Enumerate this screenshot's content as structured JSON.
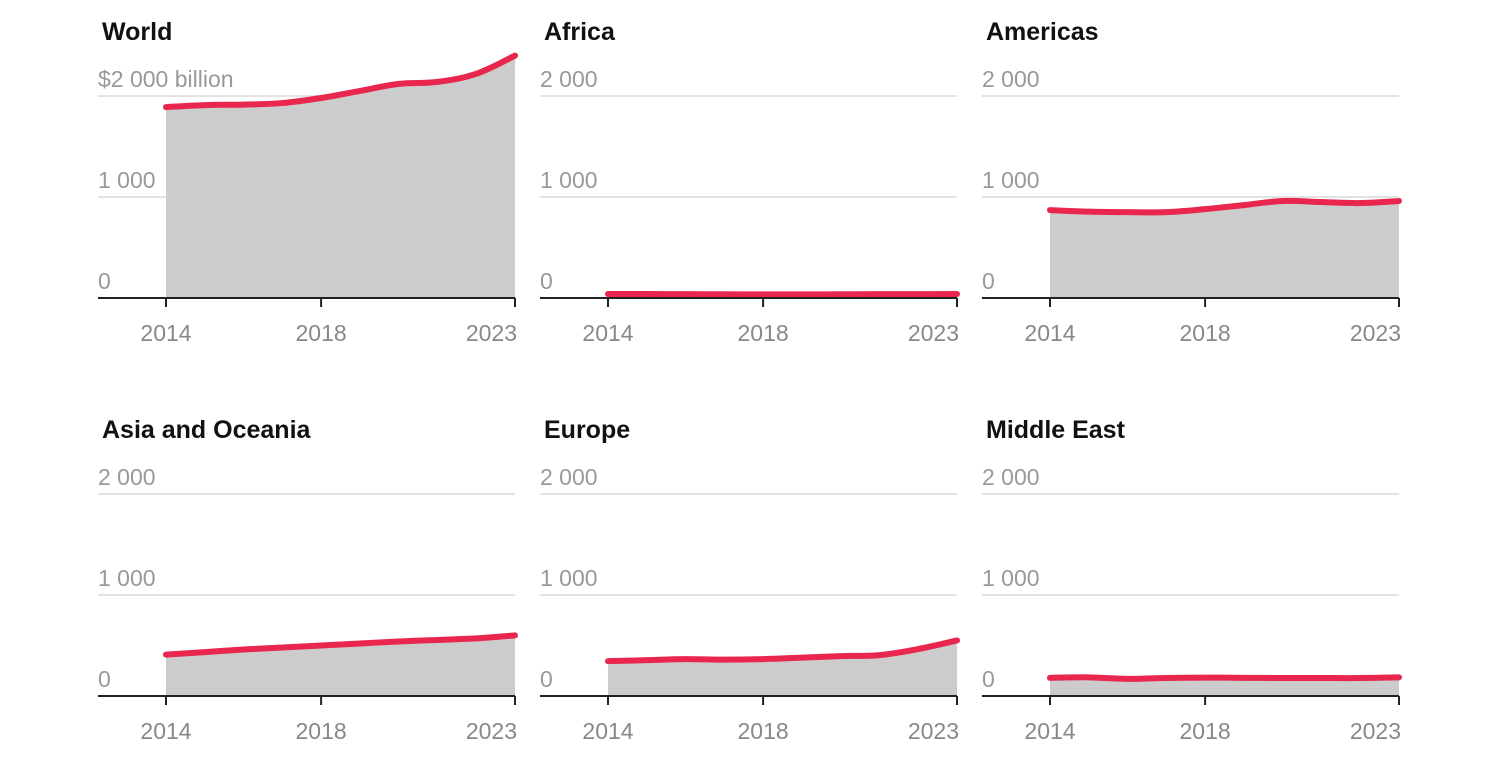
{
  "colors": {
    "line": "#e8264e",
    "area": "#cccccc",
    "grid": "#e3e3e3",
    "axis": "#222222",
    "tick_text": "#999999",
    "title_text": "#111111"
  },
  "chart_data": [
    {
      "type": "area",
      "title": "World",
      "x": [
        2014,
        2015,
        2016,
        2017,
        2018,
        2019,
        2020,
        2021,
        2022,
        2023
      ],
      "values": [
        1890,
        1910,
        1915,
        1930,
        1980,
        2050,
        2120,
        2140,
        2220,
        2400
      ],
      "ylim": [
        0,
        2000
      ],
      "yticks": [
        {
          "value": 0,
          "label": "0"
        },
        {
          "value": 1000,
          "label": "1 000"
        },
        {
          "value": 2000,
          "label": "$2 000 billion"
        }
      ],
      "xticks": [
        2014,
        2018,
        2023
      ],
      "grid": true
    },
    {
      "type": "area",
      "title": "Africa",
      "x": [
        2014,
        2015,
        2016,
        2017,
        2018,
        2019,
        2020,
        2021,
        2022,
        2023
      ],
      "values": [
        40,
        39,
        38,
        37,
        36,
        36,
        37,
        38,
        38,
        40
      ],
      "ylim": [
        0,
        2000
      ],
      "yticks": [
        {
          "value": 0,
          "label": "0"
        },
        {
          "value": 1000,
          "label": "1 000"
        },
        {
          "value": 2000,
          "label": "2 000"
        }
      ],
      "xticks": [
        2014,
        2018,
        2023
      ],
      "grid": true
    },
    {
      "type": "area",
      "title": "Americas",
      "x": [
        2014,
        2015,
        2016,
        2017,
        2018,
        2019,
        2020,
        2021,
        2022,
        2023
      ],
      "values": [
        870,
        855,
        850,
        850,
        880,
        920,
        960,
        950,
        940,
        960
      ],
      "ylim": [
        0,
        2000
      ],
      "yticks": [
        {
          "value": 0,
          "label": "0"
        },
        {
          "value": 1000,
          "label": "1 000"
        },
        {
          "value": 2000,
          "label": "2 000"
        }
      ],
      "xticks": [
        2014,
        2018,
        2023
      ],
      "grid": true
    },
    {
      "type": "area",
      "title": "Asia and Oceania",
      "x": [
        2014,
        2015,
        2016,
        2017,
        2018,
        2019,
        2020,
        2021,
        2022,
        2023
      ],
      "values": [
        410,
        435,
        460,
        480,
        500,
        520,
        540,
        555,
        570,
        600
      ],
      "ylim": [
        0,
        2000
      ],
      "yticks": [
        {
          "value": 0,
          "label": "0"
        },
        {
          "value": 1000,
          "label": "1 000"
        },
        {
          "value": 2000,
          "label": "2 000"
        }
      ],
      "xticks": [
        2014,
        2018,
        2023
      ],
      "grid": true
    },
    {
      "type": "area",
      "title": "Europe",
      "x": [
        2014,
        2015,
        2016,
        2017,
        2018,
        2019,
        2020,
        2021,
        2022,
        2023
      ],
      "values": [
        345,
        355,
        365,
        360,
        365,
        380,
        395,
        405,
        465,
        550
      ],
      "ylim": [
        0,
        2000
      ],
      "yticks": [
        {
          "value": 0,
          "label": "0"
        },
        {
          "value": 1000,
          "label": "1 000"
        },
        {
          "value": 2000,
          "label": "2 000"
        }
      ],
      "xticks": [
        2014,
        2018,
        2023
      ],
      "grid": true
    },
    {
      "type": "area",
      "title": "Middle East",
      "x": [
        2014,
        2015,
        2016,
        2017,
        2018,
        2019,
        2020,
        2021,
        2022,
        2023
      ],
      "values": [
        180,
        185,
        170,
        178,
        182,
        180,
        178,
        178,
        178,
        185
      ],
      "ylim": [
        0,
        2000
      ],
      "yticks": [
        {
          "value": 0,
          "label": "0"
        },
        {
          "value": 1000,
          "label": "1 000"
        },
        {
          "value": 2000,
          "label": "2 000"
        }
      ],
      "xticks": [
        2014,
        2018,
        2023
      ],
      "grid": true
    }
  ]
}
